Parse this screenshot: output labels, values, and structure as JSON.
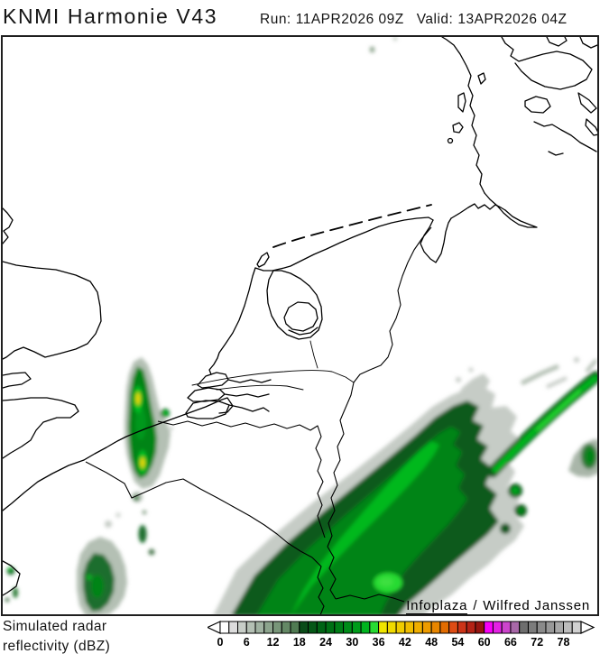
{
  "header": {
    "title": "KNMI Harmonie V43",
    "run_label": "Run:",
    "run_value": "11APR2026 09Z",
    "valid_label": "Valid:",
    "valid_value": "13APR2026 04Z"
  },
  "map": {
    "attribution": {
      "source": "Infoplaza",
      "separator": "/",
      "author": "Wilfred Janssen"
    }
  },
  "legend": {
    "label_line1": "Simulated radar",
    "label_line2": "reflectivity (dBZ)",
    "unit": "dBZ",
    "dbz_per_cell": 2,
    "tick_values": [
      0,
      6,
      12,
      18,
      24,
      30,
      36,
      42,
      48,
      54,
      60,
      66,
      72,
      78
    ],
    "cell_colors": [
      "#ffffff",
      "#dcdcdc",
      "#c8cec8",
      "#b4c0b4",
      "#a0b2a1",
      "#8ca48d",
      "#789679",
      "#648865",
      "#507a52",
      "#0a4c18",
      "#055816",
      "#006414",
      "#007014",
      "#007e16",
      "#008c18",
      "#009c1a",
      "#00b41e",
      "#28da32",
      "#f0e600",
      "#f0da00",
      "#f0cc00",
      "#f0be00",
      "#f0ae00",
      "#ee9c00",
      "#e88600",
      "#e26c00",
      "#de4c14",
      "#cc3418",
      "#b42216",
      "#961410",
      "#f800f8",
      "#e420e4",
      "#cc44cc",
      "#a868a8",
      "#6e6e6e",
      "#7c7c7c",
      "#8a8a8a",
      "#989898",
      "#a8a8a8",
      "#bcbcbc",
      "#d0d0d0"
    ]
  },
  "colors": {
    "frame": "#1f1f1f",
    "coastline": "#000000",
    "background": "#ffffff",
    "pale_fringe": "#c6ccc6",
    "gray_green": "#b4c0b4",
    "dark_green": "#0a5a1c",
    "mid_green": "#008418",
    "bright_green": "#00b81e",
    "lightest_green": "#28da32",
    "core_yellow": "#f0d800"
  }
}
